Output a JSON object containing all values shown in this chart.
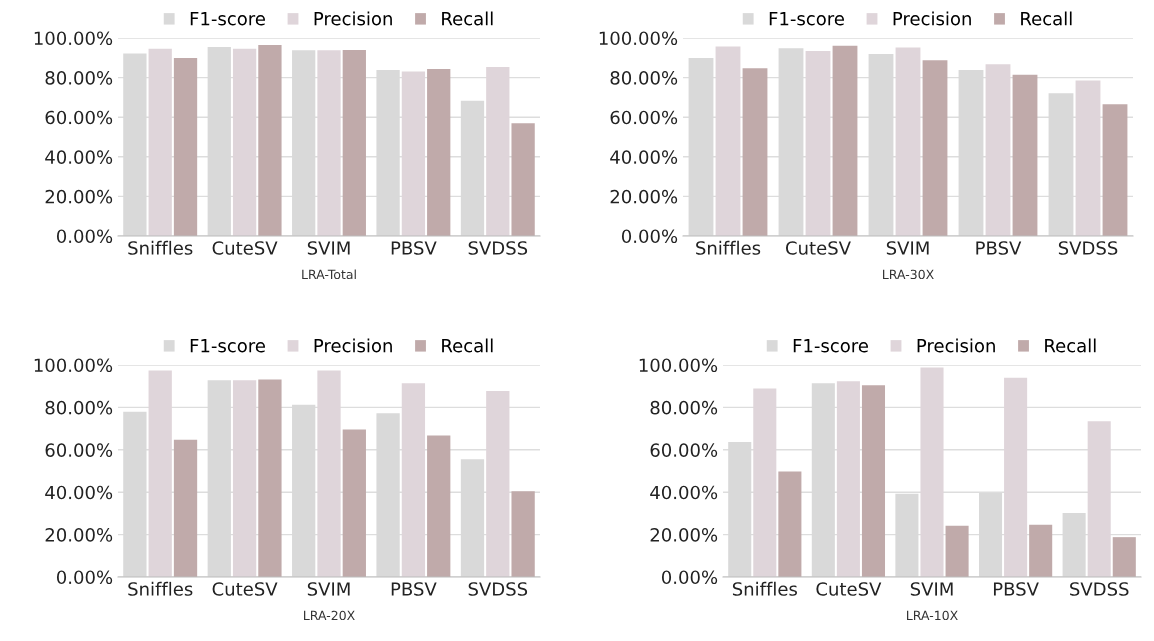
{
  "chart_data": [
    {
      "type": "bar",
      "xlabel": "LRA-Total",
      "categories": [
        "Sniffles",
        "CuteSV",
        "SVIM",
        "PBSV",
        "SVDSS"
      ],
      "ylim": [
        0,
        100
      ],
      "yticks": [
        {
          "value": 0,
          "label": "0.00%"
        },
        {
          "value": 20,
          "label": "20.00%"
        },
        {
          "value": 40,
          "label": "40.00%"
        },
        {
          "value": 60,
          "label": "60.00%"
        },
        {
          "value": 80,
          "label": "80.00%"
        },
        {
          "value": 100,
          "label": "100.00%"
        }
      ],
      "grid": "y",
      "legend": "top",
      "series": [
        {
          "name": "F1-score",
          "color": "#d9d9d9",
          "values": [
            92.2,
            95.5,
            93.8,
            83.9,
            68.3
          ]
        },
        {
          "name": "Precision",
          "color": "#dfd5da",
          "values": [
            94.6,
            94.6,
            93.8,
            83.1,
            85.4
          ]
        },
        {
          "name": "Recall",
          "color": "#c0aaaa",
          "values": [
            89.9,
            96.5,
            94.0,
            84.3,
            56.9
          ]
        }
      ]
    },
    {
      "type": "bar",
      "xlabel": "LRA-30X",
      "categories": [
        "Sniffles",
        "CuteSV",
        "SVIM",
        "PBSV",
        "SVDSS"
      ],
      "ylim": [
        0,
        100
      ],
      "yticks": [
        {
          "value": 0,
          "label": "0.00%"
        },
        {
          "value": 20,
          "label": "20.00%"
        },
        {
          "value": 40,
          "label": "40.00%"
        },
        {
          "value": 60,
          "label": "60.00%"
        },
        {
          "value": 80,
          "label": "80.00%"
        },
        {
          "value": 100,
          "label": "100.00%"
        }
      ],
      "grid": "y",
      "legend": "top",
      "series": [
        {
          "name": "F1-score",
          "color": "#d9d9d9",
          "values": [
            89.9,
            94.8,
            91.9,
            83.9,
            72.1
          ]
        },
        {
          "name": "Precision",
          "color": "#dfd5da",
          "values": [
            95.7,
            93.4,
            95.2,
            86.8,
            78.5
          ]
        },
        {
          "name": "Recall",
          "color": "#c0aaaa",
          "values": [
            84.7,
            96.1,
            88.8,
            81.4,
            66.5
          ]
        }
      ]
    },
    {
      "type": "bar",
      "xlabel": "LRA-20X",
      "categories": [
        "Sniffles",
        "CuteSV",
        "SVIM",
        "PBSV",
        "SVDSS"
      ],
      "ylim": [
        0,
        100
      ],
      "yticks": [
        {
          "value": 0,
          "label": "0.00%"
        },
        {
          "value": 20,
          "label": "20.00%"
        },
        {
          "value": 40,
          "label": "40.00%"
        },
        {
          "value": 60,
          "label": "60.00%"
        },
        {
          "value": 80,
          "label": "80.00%"
        },
        {
          "value": 100,
          "label": "100.00%"
        }
      ],
      "grid": "y",
      "legend": "top",
      "series": [
        {
          "name": "F1-score",
          "color": "#d9d9d9",
          "values": [
            77.9,
            92.8,
            81.2,
            77.2,
            55.6
          ]
        },
        {
          "name": "Precision",
          "color": "#dfd5da",
          "values": [
            97.4,
            92.8,
            97.4,
            91.4,
            87.7
          ]
        },
        {
          "name": "Recall",
          "color": "#c0aaaa",
          "values": [
            64.7,
            93.2,
            69.6,
            66.8,
            40.5
          ]
        }
      ]
    },
    {
      "type": "bar",
      "xlabel": "LRA-10X",
      "categories": [
        "Sniffles",
        "CuteSV",
        "SVIM",
        "PBSV",
        "SVDSS"
      ],
      "ylim": [
        0,
        100
      ],
      "yticks": [
        {
          "value": 0,
          "label": "0.00%"
        },
        {
          "value": 20,
          "label": "20.00%"
        },
        {
          "value": 40,
          "label": "40.00%"
        },
        {
          "value": 60,
          "label": "60.00%"
        },
        {
          "value": 80,
          "label": "80.00%"
        },
        {
          "value": 100,
          "label": "100.00%"
        }
      ],
      "grid": "y",
      "legend": "top",
      "series": [
        {
          "name": "F1-score",
          "color": "#d9d9d9",
          "values": [
            63.7,
            91.4,
            39.3,
            39.6,
            30.2
          ]
        },
        {
          "name": "Precision",
          "color": "#dfd5da",
          "values": [
            88.9,
            92.3,
            98.8,
            94.0,
            73.5
          ]
        },
        {
          "name": "Recall",
          "color": "#c0aaaa",
          "values": [
            49.8,
            90.5,
            24.2,
            24.7,
            18.8
          ]
        }
      ]
    }
  ]
}
